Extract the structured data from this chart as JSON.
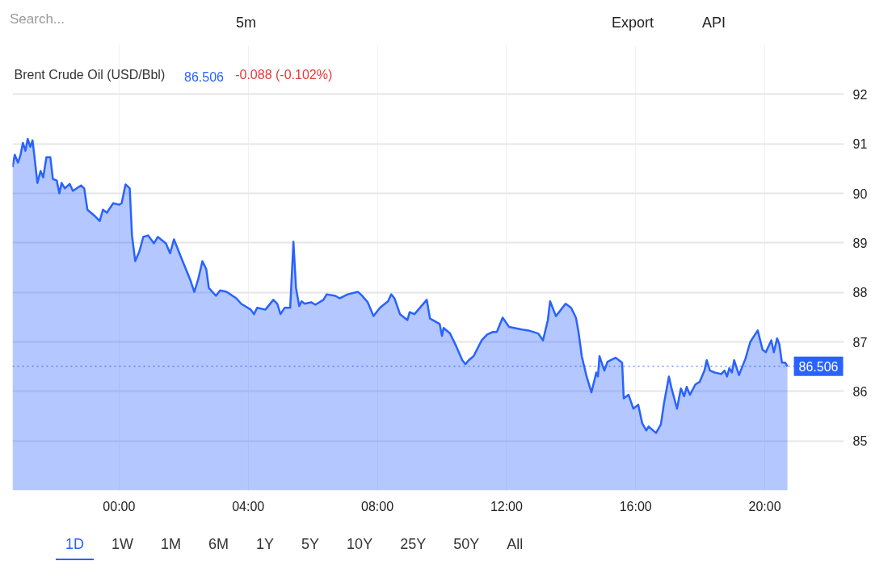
{
  "chart_data": {
    "type": "area",
    "title": "Brent Crude Oil (USD/Bbl)",
    "annotations": [
      "86.506",
      "-0.088 (-0.102%)",
      "Search...",
      "5m",
      "Export",
      "API",
      "1D",
      "1W",
      "1M",
      "6M",
      "1Y",
      "5Y",
      "10Y",
      "25Y",
      "50Y",
      "All"
    ],
    "x": [
      -3.3,
      -3.23,
      -3.13,
      -3.05,
      -2.98,
      -2.9,
      -2.83,
      -2.75,
      -2.68,
      -2.6,
      -2.53,
      -2.43,
      -2.35,
      -2.25,
      -2.13,
      -2.05,
      -1.93,
      -1.85,
      -1.78,
      -1.68,
      -1.53,
      -1.43,
      -1.18,
      -1.08,
      -0.98,
      -0.75,
      -0.6,
      -0.5,
      -0.38,
      -0.18,
      0,
      0.08,
      0.2,
      0.33,
      0.4,
      0.5,
      0.63,
      0.75,
      0.9,
      1.08,
      1.2,
      1.45,
      1.58,
      1.7,
      1.95,
      2.2,
      2.33,
      2.45,
      2.58,
      2.7,
      2.78,
      3.0,
      3.13,
      3.33,
      3.63,
      3.78,
      4.08,
      4.18,
      4.28,
      4.53,
      4.78,
      4.9,
      5.0,
      5.13,
      5.3,
      5.4,
      5.48,
      5.58,
      5.65,
      5.75,
      5.95,
      6.08,
      6.33,
      6.43,
      6.7,
      6.83,
      7.08,
      7.4,
      7.53,
      7.7,
      7.88,
      8.08,
      8.33,
      8.43,
      8.53,
      8.7,
      8.93,
      9.0,
      9.15,
      9.53,
      9.63,
      9.93,
      10.0,
      10.05,
      10.25,
      10.45,
      10.63,
      10.73,
      10.83,
      10.98,
      11.23,
      11.4,
      11.58,
      11.7,
      11.88,
      12.08,
      12.48,
      12.68,
      12.98,
      13.13,
      13.28,
      13.35,
      13.53,
      13.83,
      14.0,
      14.15,
      14.23,
      14.33,
      14.48,
      14.63,
      14.78,
      14.83,
      14.88,
      15.03,
      15.13,
      15.38,
      15.58,
      15.63,
      15.78,
      15.93,
      16.08,
      16.2,
      16.33,
      16.4,
      16.63,
      16.78,
      16.88,
      17.03,
      17.1,
      17.28,
      17.4,
      17.5,
      17.58,
      17.68,
      17.85,
      17.98,
      18.13,
      18.2,
      18.3,
      18.45,
      18.65,
      18.75,
      18.83,
      18.9,
      18.98,
      19.05,
      19.2,
      19.4,
      19.55,
      19.78,
      19.93,
      20.03,
      20.2,
      20.28,
      20.38,
      20.45,
      20.53,
      20.63,
      20.7
    ],
    "series": [
      {
        "color": "#2962ff",
        "values": [
          90.53,
          90.78,
          90.62,
          90.78,
          91.02,
          90.86,
          91.1,
          90.94,
          91.07,
          90.62,
          90.21,
          90.45,
          90.32,
          90.73,
          90.73,
          90.29,
          90.26,
          90.0,
          90.21,
          90.1,
          90.19,
          90.05,
          90.16,
          90.1,
          89.67,
          89.54,
          89.44,
          89.67,
          89.61,
          89.8,
          89.77,
          89.8,
          90.18,
          90.1,
          89.15,
          88.63,
          88.83,
          89.12,
          89.15,
          88.99,
          89.12,
          88.99,
          88.79,
          89.07,
          88.66,
          88.26,
          88.01,
          88.26,
          88.63,
          88.47,
          88.09,
          87.93,
          88.04,
          88.01,
          87.88,
          87.77,
          87.65,
          87.56,
          87.69,
          87.65,
          87.85,
          87.77,
          87.56,
          87.69,
          87.69,
          89.02,
          88.09,
          87.72,
          87.82,
          87.77,
          87.8,
          87.75,
          87.85,
          87.96,
          87.93,
          87.88,
          87.96,
          88.01,
          87.93,
          87.8,
          87.52,
          87.69,
          87.82,
          87.96,
          87.88,
          87.56,
          87.44,
          87.6,
          87.56,
          87.85,
          87.47,
          87.36,
          87.12,
          87.28,
          87.17,
          86.9,
          86.63,
          86.55,
          86.63,
          86.71,
          87.03,
          87.15,
          87.2,
          87.2,
          87.49,
          87.3,
          87.25,
          87.23,
          87.17,
          87.03,
          87.44,
          87.82,
          87.52,
          87.77,
          87.69,
          87.49,
          87.2,
          86.71,
          86.3,
          85.98,
          86.38,
          86.3,
          86.71,
          86.42,
          86.6,
          86.68,
          86.58,
          85.86,
          85.93,
          85.65,
          85.73,
          85.36,
          85.21,
          85.29,
          85.16,
          85.33,
          85.77,
          86.3,
          86.09,
          85.65,
          86.06,
          85.9,
          86.09,
          85.93,
          86.14,
          86.19,
          86.42,
          86.63,
          86.42,
          86.38,
          86.35,
          86.42,
          86.3,
          86.47,
          86.38,
          86.63,
          86.33,
          86.66,
          87.0,
          87.23,
          86.84,
          86.79,
          87.03,
          86.79,
          87.07,
          86.95,
          86.58,
          86.58,
          86.506
        ]
      }
    ],
    "xlim": [
      -3.3,
      22.45
    ],
    "ylim": [
      84,
      93
    ],
    "xticks": [
      {
        "value": 0,
        "label": "00:00"
      },
      {
        "value": 4,
        "label": "04:00"
      },
      {
        "value": 8,
        "label": "08:00"
      },
      {
        "value": 12,
        "label": "12:00"
      },
      {
        "value": 16,
        "label": "16:00"
      },
      {
        "value": 20,
        "label": "20:00"
      }
    ],
    "yticks": [
      85,
      86,
      87,
      88,
      89,
      90,
      91,
      92
    ],
    "ref_lines": [
      {
        "axis": "y",
        "value": 86.506,
        "label": "86.506",
        "color": "#2962ff",
        "line_style": "dotted"
      }
    ],
    "grid": true
  }
}
